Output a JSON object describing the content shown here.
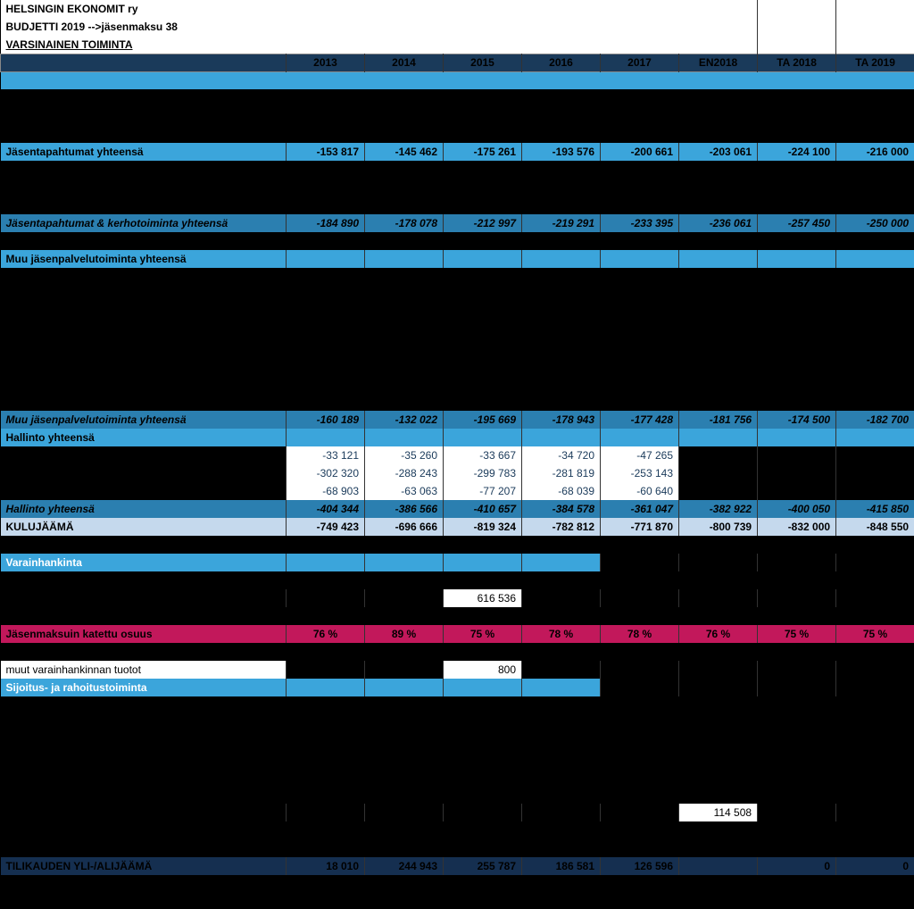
{
  "header": {
    "line1": "HELSINGIN EKONOMIT ry",
    "line2": "BUDJETTI 2019 -->jäsenmaksu 38",
    "line3": "VARSINAINEN TOIMINTA"
  },
  "years": [
    "2013",
    "2014",
    "2015",
    "2016",
    "2017",
    "EN2018",
    "TA 2018",
    "TA 2019"
  ],
  "rows": {
    "jasentapahtumat": {
      "label": "Jäsentapahtumat yhteensä",
      "values": [
        "-153 817",
        "-145 462",
        "-175 261",
        "-193 576",
        "-200 661",
        "-203 061",
        "-224 100",
        "-216 000"
      ]
    },
    "jasen_kerho": {
      "label": "Jäsentapahtumat & kerhotoiminta yhteensä",
      "values": [
        "-184 890",
        "-178 078",
        "-212 997",
        "-219 291",
        "-233 395",
        "-236 061",
        "-257 450",
        "-250 000"
      ]
    },
    "muu_header": {
      "label": "Muu jäsenpalvelutoiminta yhteensä"
    },
    "muu_total": {
      "label": "Muu jäsenpalvelutoiminta yhteensä",
      "values": [
        "-160 189",
        "-132 022",
        "-195 669",
        "-178 943",
        "-177 428",
        "-181 756",
        "-174 500",
        "-182 700"
      ]
    },
    "hallinto_header": {
      "label": "Hallinto yhteensä"
    },
    "h1": {
      "values": [
        "-33 121",
        "-35 260",
        "-33 667",
        "-34 720",
        "-47 265",
        "",
        "",
        ""
      ]
    },
    "h2": {
      "values": [
        "-302 320",
        "-288 243",
        "-299 783",
        "-281 819",
        "-253 143",
        "",
        "",
        ""
      ]
    },
    "h3": {
      "values": [
        "-68 903",
        "-63 063",
        "-77 207",
        "-68 039",
        "-60 640",
        "",
        "",
        ""
      ]
    },
    "hallinto_total": {
      "label": "Hallinto yhteensä",
      "values": [
        "-404 344",
        "-386 566",
        "-410 657",
        "-384 578",
        "-361 047",
        "-382 922",
        "-400 050",
        "-415 850"
      ]
    },
    "kulujaama": {
      "label": "KULUJÄÄMÄ",
      "values": [
        "-749 423",
        "-696 666",
        "-819 324",
        "-782 812",
        "-771 870",
        "-800 739",
        "-832 000",
        "-848 550"
      ]
    },
    "varainhankinta": {
      "label": "Varainhankinta"
    },
    "single_616": {
      "col": 2,
      "value": "616 536"
    },
    "jasenmaksu_pct": {
      "label": "Jäsenmaksuin katettu osuus",
      "values": [
        "76 %",
        "89 %",
        "75 %",
        "78 %",
        "78 %",
        "76 %",
        "75 %",
        "75 %"
      ]
    },
    "muut_varain": {
      "label": "muut varainhankinnan tuotot",
      "col": 2,
      "value": "800"
    },
    "sijoitus": {
      "label": "Sijoitus- ja rahoitustoiminta"
    },
    "single_114": {
      "col": 5,
      "value": "114 508"
    },
    "tilikauden": {
      "label": "TILIKAUDEN YLI-/ALIJÄÄMÄ",
      "values": [
        "18 010",
        "244 943",
        "255 787",
        "186 581",
        "126 596",
        "",
        "0",
        "0"
      ]
    }
  },
  "colors": {
    "sky": "#3ba5db",
    "skydark": "#2b7fb0",
    "navy": "#152f50",
    "magenta": "#c2185b",
    "lightblue": "#c5d9ed",
    "headerbg": "#1a3a5a",
    "white": "#ffffff",
    "black": "#000000"
  }
}
